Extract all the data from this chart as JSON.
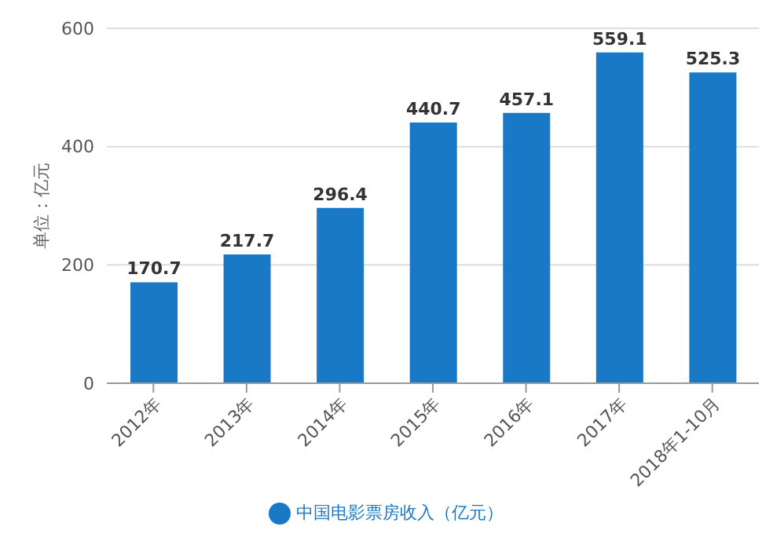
{
  "chart_data": {
    "type": "bar",
    "ylabel": "单位：亿元",
    "categories": [
      "2012年",
      "2013年",
      "2014年",
      "2015年",
      "2016年",
      "2017年",
      "2018年1-10月"
    ],
    "series": [
      {
        "name": "中国电影票房收入（亿元）",
        "color": "#1a79c6",
        "values": [
          170.7,
          217.7,
          296.4,
          440.7,
          457.1,
          559.1,
          525.3
        ]
      }
    ],
    "ylim": [
      0,
      600
    ],
    "yticks": [
      0,
      200,
      400,
      600
    ],
    "grid": "y",
    "legend": "bottom",
    "data_labels": true
  }
}
